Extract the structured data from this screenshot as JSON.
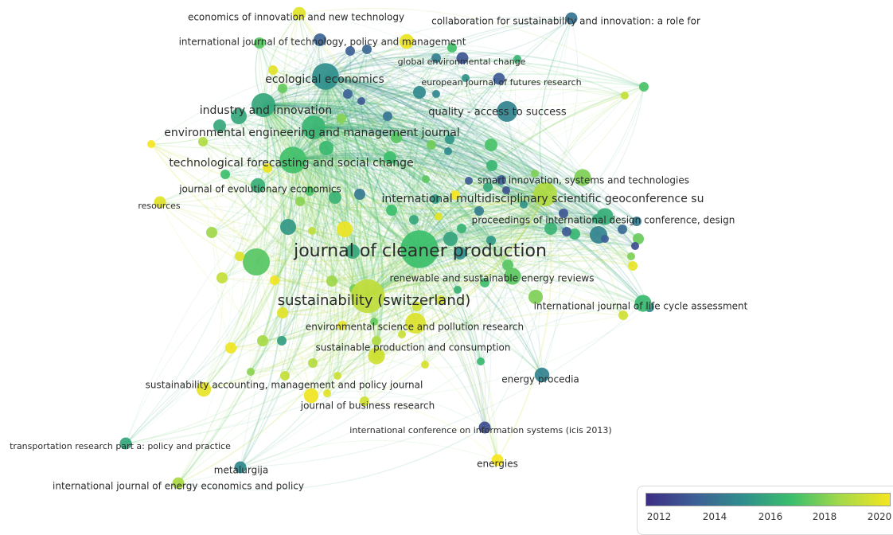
{
  "legend": {
    "ticks": [
      "2012",
      "2014",
      "2016",
      "2018",
      "2020"
    ],
    "colors": [
      "#3d2e83",
      "#3e5f96",
      "#2f8f8c",
      "#3cbf6c",
      "#a6d948",
      "#f5e61f"
    ]
  },
  "nodes": [
    {
      "label": "journal of cleaner production",
      "year": 2016.8,
      "weight": 10
    },
    {
      "label": "sustainability (switzerland)",
      "year": 2018.9,
      "weight": 8
    },
    {
      "label": "international multidisciplinary scientific geoconference su",
      "year": 2018.6,
      "weight": 4
    },
    {
      "label": "technological forecasting and social change",
      "year": 2016.9,
      "weight": 5
    },
    {
      "label": "ecological economics",
      "year": 2015.2,
      "weight": 5
    },
    {
      "label": "industry and innovation",
      "year": 2016.0,
      "weight": 4
    },
    {
      "label": "environmental engineering and management journal",
      "year": 2016.5,
      "weight": 4
    },
    {
      "label": "quality - access to success",
      "year": 2014.8,
      "weight": 3
    },
    {
      "label": "environmental science and pollution research",
      "year": 2019.5,
      "weight": 3
    },
    {
      "label": "sustainable production and consumption",
      "year": 2019.2,
      "weight": 2
    },
    {
      "label": "renewable and sustainable energy reviews",
      "year": 2017.3,
      "weight": 2
    },
    {
      "label": "international journal of life cycle assessment",
      "year": 2016.6,
      "weight": 2
    },
    {
      "label": "proceedings of international design conference, design",
      "year": 2016.2,
      "weight": 2
    },
    {
      "label": "smart innovation, systems and technologies",
      "year": 2017.8,
      "weight": 2
    },
    {
      "label": "journal of evolutionary economics",
      "year": 2016.3,
      "weight": 1.5
    },
    {
      "label": "international journal of technology, policy and management",
      "year": 2019.8,
      "weight": 1.5
    },
    {
      "label": "economics of innovation and new technology",
      "year": 2019.6,
      "weight": 1.2
    },
    {
      "label": "collaboration for sustainability and innovation: a role for",
      "year": 2014.3,
      "weight": 1
    },
    {
      "label": "global environmental change",
      "year": 2013.3,
      "weight": 1
    },
    {
      "label": "european journal of futures research",
      "year": 2013.5,
      "weight": 1
    },
    {
      "label": "resources",
      "year": 2019.6,
      "weight": 1
    },
    {
      "label": "sustainability accounting, management and policy journal",
      "year": 2019.7,
      "weight": 1.5
    },
    {
      "label": "journal of business research",
      "year": 2019.9,
      "weight": 1.5
    },
    {
      "label": "energy procedia",
      "year": 2014.8,
      "weight": 1.5
    },
    {
      "label": "international conference on information systems (icis 2013)",
      "year": 2013.0,
      "weight": 1
    },
    {
      "label": "energies",
      "year": 2020.0,
      "weight": 1
    },
    {
      "label": "transportation research part a: policy and practice",
      "year": 2016.0,
      "weight": 1
    },
    {
      "label": "metalurgija",
      "year": 2015.0,
      "weight": 1
    },
    {
      "label": "international journal of energy economics and policy",
      "year": 2018.5,
      "weight": 1
    }
  ]
}
